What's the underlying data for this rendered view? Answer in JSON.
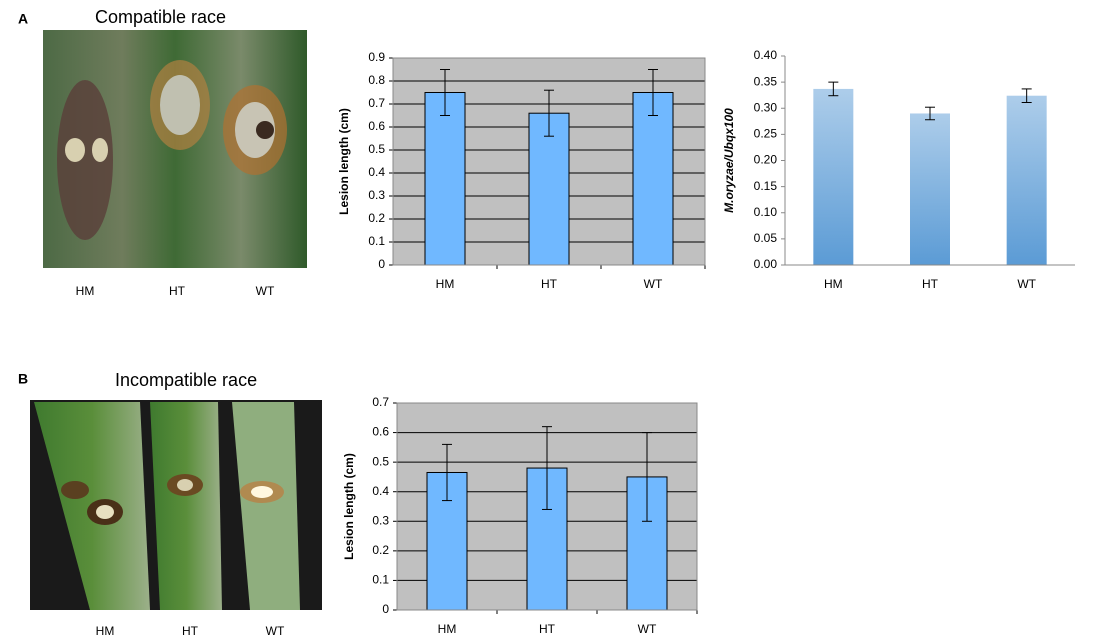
{
  "panels": [
    {
      "label": "A",
      "title": "Compatible race",
      "photo_labels": [
        "HM",
        "HT",
        "WT"
      ]
    },
    {
      "label": "B",
      "title": "Incompatible race",
      "photo_labels": [
        "HM",
        "HT",
        "WT"
      ]
    }
  ],
  "chart_data": [
    {
      "type": "bar",
      "ylabel": "Lesion length (cm)",
      "categories": [
        "HM",
        "HT",
        "WT"
      ],
      "series": [
        {
          "color": "#70b8ff",
          "values": [
            0.75,
            0.66,
            0.75
          ],
          "errors": [
            0.1,
            0.1,
            0.1
          ]
        }
      ],
      "edgecolor": "#000000",
      "background": "#c0c0c0",
      "grid": true,
      "ylim": [
        0,
        0.9
      ],
      "yticks": [
        0,
        0.1,
        0.2,
        0.3,
        0.4,
        0.5,
        0.6,
        0.7,
        0.8,
        0.9
      ]
    },
    {
      "type": "bar",
      "ylabel": "M.oryzae/Ubqx100",
      "categories": [
        "HM",
        "HT",
        "WT"
      ],
      "series": [
        {
          "color": "#5b9bd5",
          "values": [
            0.337,
            0.29,
            0.324
          ],
          "errors": [
            0.013,
            0.012,
            0.013
          ]
        }
      ],
      "gradient": true,
      "grid": false,
      "ylim": [
        0,
        0.4
      ],
      "yticks": [
        {
          "value": 0,
          "label": "0.00"
        },
        {
          "value": 0.05,
          "label": "0.05"
        },
        {
          "value": 0.1,
          "label": "0.10"
        },
        {
          "value": 0.15,
          "label": "0.15"
        },
        {
          "value": 0.2,
          "label": "0.20"
        },
        {
          "value": 0.25,
          "label": "0.25"
        },
        {
          "value": 0.3,
          "label": "0.30"
        },
        {
          "value": 0.35,
          "label": "0.35"
        },
        {
          "value": 0.4,
          "label": "0.40"
        }
      ]
    },
    {
      "type": "bar",
      "ylabel": "Lesion length (cm)",
      "categories": [
        "HM",
        "HT",
        "WT"
      ],
      "series": [
        {
          "color": "#70b8ff",
          "values": [
            0.465,
            0.48,
            0.45
          ],
          "errors": [
            0.095,
            0.14,
            0.15
          ]
        }
      ],
      "edgecolor": "#000000",
      "background": "#c0c0c0",
      "grid": true,
      "ylim": [
        0,
        0.7
      ],
      "yticks": [
        0,
        0.1,
        0.2,
        0.3,
        0.4,
        0.5,
        0.6,
        0.7
      ]
    }
  ]
}
